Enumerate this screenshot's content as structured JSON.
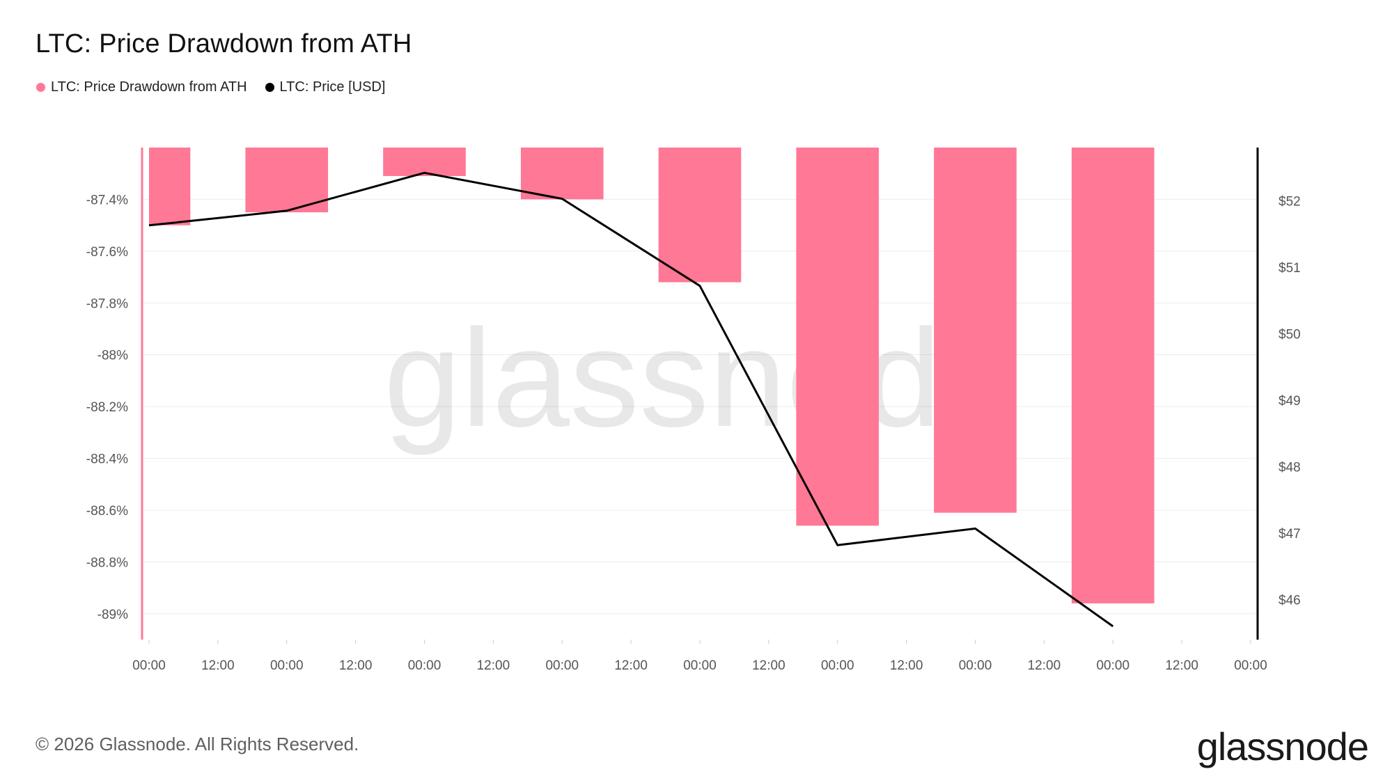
{
  "title": "LTC: Price Drawdown from ATH",
  "legend": [
    {
      "label": "LTC: Price Drawdown from ATH",
      "color": "#ff7895"
    },
    {
      "label": "LTC: Price [USD]",
      "color": "#000000"
    }
  ],
  "footer": "© 2026 Glassnode. All Rights Reserved.",
  "brand": "glassnode",
  "watermark": "glassnode",
  "chart_data": {
    "type": "bar",
    "x_ticks": [
      "00:00",
      "12:00",
      "00:00",
      "12:00",
      "00:00",
      "12:00",
      "00:00",
      "12:00",
      "00:00",
      "12:00",
      "00:00",
      "12:00",
      "00:00",
      "12:00",
      "00:00",
      "12:00",
      "00:00"
    ],
    "left_axis": {
      "ticks": [
        "-87.4%",
        "-87.6%",
        "-87.8%",
        "-88%",
        "-88.2%",
        "-88.4%",
        "-88.6%",
        "-88.8%",
        "-89%"
      ],
      "range": [
        -89.1,
        -87.2
      ]
    },
    "right_axis": {
      "ticks": [
        "$52",
        "$51",
        "$50",
        "$49",
        "$48",
        "$47",
        "$46"
      ],
      "range": [
        45.4,
        52.8
      ]
    },
    "bar_color": "#ff7895",
    "line_color": "#000000",
    "series": [
      {
        "name": "LTC: Price Drawdown from ATH",
        "type": "bar",
        "bar_intervals_in_ticks": [
          [
            0,
            0.6
          ],
          [
            1.4,
            2.6
          ],
          [
            3.4,
            4.6
          ],
          [
            5.4,
            6.6
          ],
          [
            7.4,
            8.6
          ],
          [
            9.4,
            10.6
          ],
          [
            11.4,
            12.6
          ],
          [
            13.4,
            14.6
          ]
        ],
        "values": [
          -87.5,
          -87.45,
          -87.31,
          -87.4,
          -87.72,
          -88.66,
          -88.61,
          -88.96
        ]
      },
      {
        "name": "LTC: Price [USD]",
        "type": "line",
        "x_in_ticks": [
          0,
          2,
          4,
          6,
          8,
          10,
          12,
          14
        ],
        "values": [
          51.63,
          51.85,
          52.42,
          52.03,
          50.72,
          46.82,
          47.07,
          45.6
        ]
      }
    ]
  }
}
